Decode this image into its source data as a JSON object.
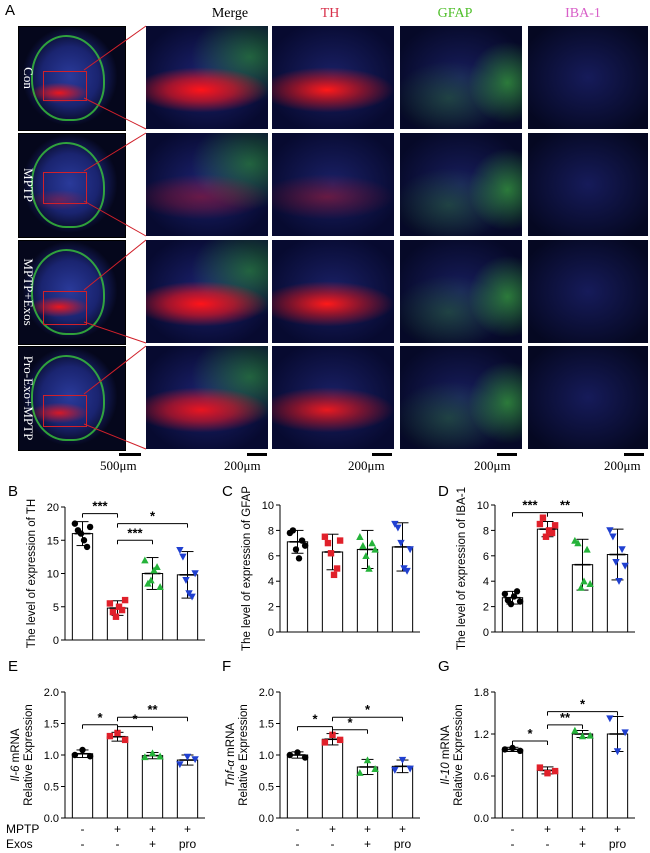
{
  "panel_a": {
    "letter": "A",
    "columns": [
      {
        "label": "Merge",
        "color": "#000000"
      },
      {
        "label": "TH",
        "color": "#d8304a"
      },
      {
        "label": "GFAP",
        "color": "#4fbf2a"
      },
      {
        "label": "IBA-1",
        "color": "#d85fc8"
      }
    ],
    "rows": [
      "Con",
      "MPTP",
      "MPTP+Exos",
      "Pro-Exo+MPTP"
    ],
    "scale_bars": [
      "500μm",
      "200μm",
      "200μm",
      "200μm",
      "200μm"
    ]
  },
  "conditions": {
    "labels": [
      "MPTP",
      "Exos"
    ],
    "mptp": [
      "-",
      "+",
      "+",
      "+"
    ],
    "exos": [
      "-",
      "-",
      "+",
      "pro"
    ]
  },
  "chart_data": [
    {
      "id": "B",
      "letter": "B",
      "type": "bar",
      "ylabel": "The level of expression of TH",
      "ylim": [
        0,
        20
      ],
      "yticks": [
        0,
        5,
        10,
        15,
        20
      ],
      "values": [
        16.0,
        4.8,
        10.0,
        9.8
      ],
      "errors": [
        1.8,
        1.1,
        2.4,
        3.5
      ],
      "colors": [
        "#000000",
        "#e0202a",
        "#25b33a",
        "#2040d0"
      ],
      "points": [
        [
          17.5,
          16.5,
          16.0,
          15.0,
          14.0,
          17.0
        ],
        [
          5.5,
          4.2,
          3.5,
          5.0,
          4.5,
          6.0
        ],
        [
          12.0,
          8.5,
          9.0,
          10.5,
          11.0,
          8.0
        ],
        [
          13.5,
          12.5,
          9.0,
          7.0,
          6.5,
          10.0
        ]
      ],
      "brackets": [
        {
          "from": 0,
          "to": 1,
          "y": 19.0,
          "label": "***"
        },
        {
          "from": 1,
          "to": 2,
          "y": 15.0,
          "label": "***"
        },
        {
          "from": 1,
          "to": 3,
          "y": 17.5,
          "label": "*"
        }
      ]
    },
    {
      "id": "C",
      "letter": "C",
      "type": "bar",
      "ylabel": "The level of expression of GFAP",
      "ylim": [
        0,
        10
      ],
      "yticks": [
        0,
        2,
        4,
        6,
        8,
        10
      ],
      "values": [
        7.1,
        6.3,
        6.5,
        6.7
      ],
      "errors": [
        0.9,
        1.4,
        1.5,
        1.9
      ],
      "colors": [
        "#000000",
        "#e0202a",
        "#25b33a",
        "#2040d0"
      ],
      "points": [
        [
          7.8,
          8.0,
          6.5,
          5.8,
          7.2,
          6.8
        ],
        [
          7.5,
          7.0,
          6.2,
          4.5,
          5.0,
          7.2
        ],
        [
          7.5,
          6.8,
          6.0,
          5.0,
          7.0,
          6.5
        ],
        [
          8.5,
          8.2,
          7.0,
          5.0,
          4.8,
          6.5
        ]
      ],
      "brackets": []
    },
    {
      "id": "D",
      "letter": "D",
      "type": "bar",
      "ylabel": "The level of expression of IBA-1",
      "ylim": [
        0,
        10
      ],
      "yticks": [
        0,
        2,
        4,
        6,
        8,
        10
      ],
      "values": [
        2.7,
        8.1,
        5.3,
        6.1
      ],
      "errors": [
        0.5,
        0.6,
        2.0,
        2.0
      ],
      "colors": [
        "#000000",
        "#e0202a",
        "#25b33a",
        "#2040d0"
      ],
      "points": [
        [
          3.0,
          2.5,
          2.2,
          2.8,
          3.2,
          2.4
        ],
        [
          8.5,
          9.0,
          7.5,
          8.0,
          7.8,
          8.4
        ],
        [
          7.2,
          7.0,
          3.5,
          4.0,
          6.5,
          3.8
        ],
        [
          8.0,
          7.5,
          5.5,
          4.0,
          6.5,
          5.2
        ]
      ],
      "brackets": [
        {
          "from": 0,
          "to": 1,
          "y": 9.4,
          "label": "***"
        },
        {
          "from": 1,
          "to": 2,
          "y": 9.4,
          "label": "**"
        }
      ]
    },
    {
      "id": "E",
      "letter": "E",
      "type": "bar",
      "ylabel_italic": "Il-6",
      "ylabel_rest": " mRNA",
      "ylabel2": "Relative Expression",
      "ylim": [
        0,
        2.0
      ],
      "yticks": [
        0,
        0.5,
        1.0,
        1.5,
        2.0
      ],
      "yticklabels": [
        "0.0",
        "0.5",
        "1.0",
        "1.5",
        "2.0"
      ],
      "values": [
        1.02,
        1.29,
        0.99,
        0.92
      ],
      "errors": [
        0.06,
        0.07,
        0.05,
        0.08
      ],
      "colors": [
        "#000000",
        "#e0202a",
        "#25b33a",
        "#2040d0"
      ],
      "points": [
        [
          1.0,
          1.08,
          0.98
        ],
        [
          1.3,
          1.35,
          1.24
        ],
        [
          0.97,
          1.03,
          0.98
        ],
        [
          0.85,
          0.97,
          0.93
        ]
      ],
      "brackets": [
        {
          "from": 0,
          "to": 1,
          "y": 1.48,
          "label": "*"
        },
        {
          "from": 1,
          "to": 2,
          "y": 1.45,
          "label": "*"
        },
        {
          "from": 1,
          "to": 3,
          "y": 1.6,
          "label": "**"
        }
      ]
    },
    {
      "id": "F",
      "letter": "F",
      "type": "bar",
      "ylabel_italic": "Tnf-α",
      "ylabel_rest": " mRNA",
      "ylabel2": "Relative Expression",
      "ylim": [
        0,
        2.0
      ],
      "yticks": [
        0,
        0.5,
        1.0,
        1.5,
        2.0
      ],
      "yticklabels": [
        "0.0",
        "0.5",
        "1.0",
        "1.5",
        "2.0"
      ],
      "values": [
        1.0,
        1.25,
        0.81,
        0.82
      ],
      "errors": [
        0.05,
        0.09,
        0.12,
        0.1
      ],
      "colors": [
        "#000000",
        "#e0202a",
        "#25b33a",
        "#2040d0"
      ],
      "points": [
        [
          1.0,
          1.04,
          0.96
        ],
        [
          1.2,
          1.32,
          1.24
        ],
        [
          0.72,
          0.92,
          0.78
        ],
        [
          0.76,
          0.92,
          0.78
        ]
      ],
      "brackets": [
        {
          "from": 0,
          "to": 1,
          "y": 1.45,
          "label": "*"
        },
        {
          "from": 1,
          "to": 2,
          "y": 1.4,
          "label": "*"
        },
        {
          "from": 1,
          "to": 3,
          "y": 1.6,
          "label": "*"
        }
      ]
    },
    {
      "id": "G",
      "letter": "G",
      "type": "bar",
      "ylabel_italic": "Il-10",
      "ylabel_rest": " mRNA",
      "ylabel2": "Relative Expression",
      "ylim": [
        0,
        1.8
      ],
      "yticks": [
        0,
        0.6,
        1.2,
        1.8
      ],
      "yticklabels": [
        "0.0",
        "0.6",
        "1.2",
        "1.8"
      ],
      "values": [
        0.98,
        0.68,
        1.2,
        1.2
      ],
      "errors": [
        0.03,
        0.05,
        0.05,
        0.25
      ],
      "colors": [
        "#000000",
        "#e0202a",
        "#25b33a",
        "#2040d0"
      ],
      "points": [
        [
          0.98,
          1.0,
          0.96
        ],
        [
          0.72,
          0.64,
          0.67
        ],
        [
          1.25,
          1.17,
          1.18
        ],
        [
          1.42,
          0.95,
          1.22
        ]
      ],
      "brackets": [
        {
          "from": 0,
          "to": 1,
          "y": 1.1,
          "label": "*"
        },
        {
          "from": 1,
          "to": 2,
          "y": 1.33,
          "label": "**"
        },
        {
          "from": 1,
          "to": 3,
          "y": 1.52,
          "label": "*"
        }
      ]
    }
  ]
}
